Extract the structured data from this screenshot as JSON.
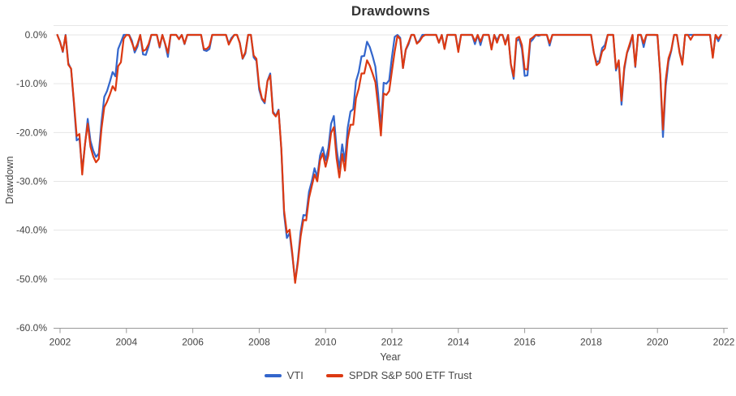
{
  "page": {
    "background": "#ffffff"
  },
  "chart_data": {
    "type": "line",
    "title": "Drawdowns",
    "xlabel": "Year",
    "ylabel": "Drawdown",
    "legend_position": "bottom",
    "grid": true,
    "x_start": "Dec 2001 baseline, then monthly points Jan 2002 - Dec 2021",
    "points_per_year": 12,
    "xlim": [
      2002,
      2022
    ],
    "ylim": [
      -60,
      0
    ],
    "x_tick_labels": [
      "2002",
      "2004",
      "2006",
      "2008",
      "2010",
      "2012",
      "2014",
      "2016",
      "2018",
      "2020",
      "2022"
    ],
    "y_tick_labels": [
      "0.0%",
      "-10.0%",
      "-20.0%",
      "-30.0%",
      "-40.0%",
      "-50.0%",
      "-60.0%"
    ],
    "y_tick_values": [
      0,
      -10,
      -20,
      -30,
      -40,
      -50,
      -60
    ],
    "grid_color": "#e6e6e6",
    "axis_color": "#999999",
    "label_color": "#444444",
    "title_color": "#333333",
    "series": [
      {
        "name": "VTI",
        "key": "vti",
        "color": "#3366cc",
        "values": [
          0,
          -1.4,
          -3.5,
          0,
          -5.8,
          -7,
          -13.9,
          -21.6,
          -21.2,
          -27.8,
          -22.6,
          -17.2,
          -21.7,
          -23.7,
          -25,
          -24.3,
          -17.8,
          -12.7,
          -11.5,
          -9.6,
          -7.6,
          -8.5,
          -2.9,
          -1.5,
          0,
          0,
          0,
          -1.2,
          -3.6,
          -2.4,
          0,
          -4,
          -4.1,
          -2.4,
          0,
          0,
          0,
          -2.6,
          0,
          -1.9,
          -4.5,
          0,
          0,
          0,
          -0.8,
          0,
          -1.9,
          0,
          0,
          0,
          0,
          0,
          0,
          -3.1,
          -3.3,
          -2.9,
          0,
          0,
          0,
          0,
          0,
          0,
          -1.8,
          -0.6,
          0,
          0,
          -1.6,
          -4.9,
          -3.8,
          0,
          0,
          -4.6,
          -5.3,
          -11.2,
          -13.2,
          -14,
          -9.4,
          -7.9,
          -15.7,
          -16.6,
          -15.3,
          -23.5,
          -36.7,
          -41.6,
          -40.6,
          -45.3,
          -50.5,
          -46.1,
          -40.3,
          -36.9,
          -37,
          -32.1,
          -30,
          -27.3,
          -29.1,
          -24.7,
          -23,
          -25.7,
          -23.2,
          -18.2,
          -16.6,
          -23.3,
          -27.4,
          -22.4,
          -25.9,
          -19,
          -15.7,
          -15.2,
          -9.5,
          -7.6,
          -4.4,
          -4.3,
          -1.4,
          -2.5,
          -4.3,
          -6.5,
          -12.1,
          -19.1,
          -9.8,
          -10,
          -9.3,
          -4.5,
          -0.4,
          0,
          -0.6,
          -6.8,
          -3.1,
          -1.9,
          0,
          0,
          -1.7,
          -1.1,
          0,
          0,
          0,
          0,
          0,
          0,
          -1.6,
          0,
          -2.8,
          0,
          0,
          0,
          0,
          -3.2,
          0,
          0,
          0,
          0,
          0,
          -1.9,
          0,
          -2.1,
          0,
          0,
          0,
          -2.8,
          0,
          -1.1,
          0,
          0,
          -1.7,
          0,
          -6.1,
          -9,
          -1.3,
          -0.8,
          -2.9,
          -8.4,
          -8.3,
          -1.5,
          -0.9,
          0,
          -0.2,
          0,
          0,
          0,
          -2.2,
          0,
          0,
          0,
          0,
          0,
          0,
          0,
          0,
          0,
          0,
          0,
          0,
          0,
          0,
          0,
          -3.7,
          -5.6,
          -5.3,
          -2.7,
          -2.1,
          0,
          0,
          0,
          -7.3,
          -5.5,
          -14.3,
          -7.1,
          -3.7,
          -2.3,
          0,
          -6.6,
          0,
          0,
          -2.5,
          0,
          0,
          0,
          0,
          -0.1,
          -8.2,
          -20.9,
          -10.5,
          -5.5,
          -3.3,
          0,
          0,
          -3.6,
          -5.8,
          0,
          0,
          0,
          0,
          0,
          0,
          0,
          0,
          0,
          0,
          -4.5,
          0,
          -1.3,
          0
        ]
      },
      {
        "name": "SPDR S&P 500 ETF Trust",
        "key": "spdr-sp500",
        "color": "#dc3912",
        "values": [
          0,
          -1.5,
          -3.4,
          -0.1,
          -6.1,
          -6.9,
          -13.5,
          -20.7,
          -20.3,
          -28.6,
          -22.4,
          -18.2,
          -22.9,
          -24.9,
          -26.1,
          -25.4,
          -19.2,
          -14.8,
          -13.7,
          -12.2,
          -10.5,
          -11.4,
          -6.4,
          -5.6,
          -0.8,
          0,
          -0.1,
          -1.6,
          -3.1,
          -1.9,
          0,
          -3.3,
          -3,
          -1.9,
          0,
          0,
          0,
          -2.4,
          0,
          -1.8,
          -3.7,
          0,
          0,
          0,
          -0.9,
          0,
          -1.8,
          0,
          0,
          0,
          0,
          0,
          0,
          -2.9,
          -2.9,
          -2.3,
          0,
          0,
          0,
          0,
          0,
          0,
          -2,
          -0.9,
          0,
          0,
          -1.7,
          -4.8,
          -3.5,
          0,
          0,
          -4.2,
          -4.9,
          -10.6,
          -13,
          -13.7,
          -9.5,
          -8.3,
          -16,
          -16.7,
          -15.5,
          -23.3,
          -36,
          -40.5,
          -39.9,
          -44.8,
          -50.8,
          -46.6,
          -41.3,
          -37.9,
          -38,
          -33.4,
          -31,
          -28.6,
          -30,
          -25.7,
          -24.3,
          -27,
          -24.7,
          -20.1,
          -18.9,
          -25.3,
          -29.2,
          -24.4,
          -27.8,
          -21.4,
          -18.4,
          -18.4,
          -13,
          -11,
          -7.9,
          -7.9,
          -5.2,
          -6.3,
          -7.9,
          -9.7,
          -14.7,
          -20.6,
          -12,
          -12.3,
          -11.5,
          -7.4,
          -3.4,
          -0.2,
          -0.9,
          -6.8,
          -3,
          -1.6,
          0,
          0,
          -1.8,
          -1.3,
          -0.4,
          0,
          0,
          0,
          0,
          0,
          -1.6,
          0,
          -2.9,
          0,
          0,
          0,
          0,
          -3.5,
          0,
          0,
          0,
          0,
          0,
          -1.3,
          0,
          -1.4,
          0,
          0,
          0,
          -3,
          0,
          -1.6,
          0,
          0,
          -2,
          0,
          -6,
          -8.5,
          -0.7,
          -0.4,
          -2.1,
          -7,
          -7.1,
          -0.9,
          -0.5,
          0,
          0,
          0,
          0,
          0,
          -1.7,
          0,
          0,
          0,
          0,
          0,
          0,
          0,
          0,
          0,
          0,
          0,
          0,
          0,
          0,
          0,
          -3.6,
          -6.2,
          -5.7,
          -3.4,
          -2.8,
          0,
          0,
          0,
          -6.9,
          -5.2,
          -13.5,
          -6.6,
          -3.6,
          -1.8,
          0,
          -6.4,
          0,
          0,
          -1.7,
          0,
          0,
          0,
          0,
          0,
          -7.9,
          -19.4,
          -9.2,
          -4.8,
          -3.1,
          0,
          0,
          -3.7,
          -6.1,
          0,
          0,
          -1,
          0,
          0,
          0,
          0,
          0,
          0,
          0,
          -4.7,
          0,
          -0.8,
          0
        ]
      }
    ]
  }
}
